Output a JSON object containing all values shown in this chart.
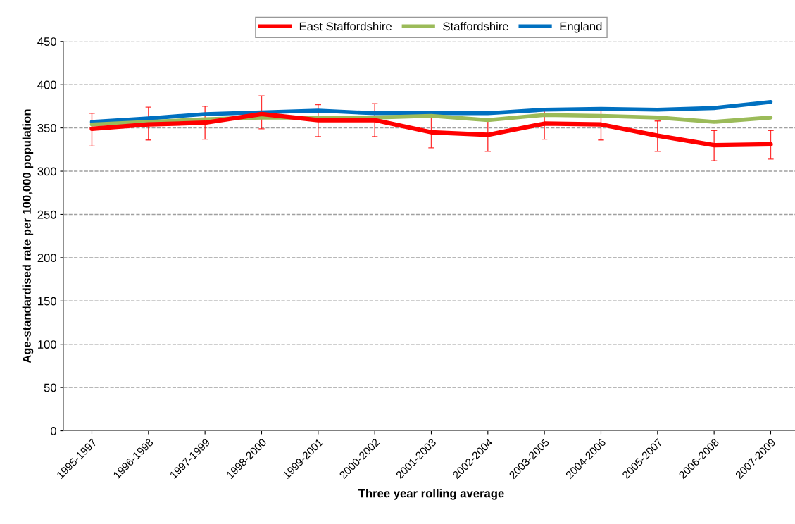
{
  "chart_data": {
    "type": "line",
    "xlabel": "Three year rolling average",
    "ylabel": "Age-standardised rate per 100,000 population",
    "categories": [
      "1995-1997",
      "1996-1998",
      "1997-1999",
      "1998-2000",
      "1999-2001",
      "2000-2002",
      "2001-2003",
      "2002-2004",
      "2003-2005",
      "2004-2006",
      "2005-2007",
      "2006-2008",
      "2007-2009"
    ],
    "series": [
      {
        "name": "East Staffordshire",
        "color": "#ff0000",
        "values": [
          349,
          354,
          356,
          366,
          359,
          359,
          345,
          342,
          355,
          354,
          341,
          330,
          331
        ],
        "errors": [
          [
            329,
            367
          ],
          [
            336,
            374
          ],
          [
            337,
            375
          ],
          [
            349,
            387
          ],
          [
            340,
            377
          ],
          [
            340,
            378
          ],
          [
            327,
            363
          ],
          [
            323,
            360
          ],
          [
            337,
            372
          ],
          [
            336,
            372
          ],
          [
            323,
            358
          ],
          [
            312,
            347
          ],
          [
            314,
            347
          ]
        ]
      },
      {
        "name": "Staffordshire",
        "color": "#9bbb59",
        "values": [
          354,
          357,
          360,
          362,
          362,
          362,
          364,
          359,
          365,
          364,
          362,
          357,
          362
        ]
      },
      {
        "name": "England",
        "color": "#0070c0",
        "values": [
          357,
          361,
          366,
          368,
          370,
          367,
          367,
          367,
          371,
          372,
          371,
          373,
          380
        ]
      }
    ],
    "ylim": [
      0,
      450
    ],
    "yticks": [
      0,
      50,
      100,
      150,
      200,
      250,
      300,
      350,
      400,
      450
    ],
    "grid": "y",
    "legend": "top",
    "marker": "none",
    "line_style": "solid"
  }
}
